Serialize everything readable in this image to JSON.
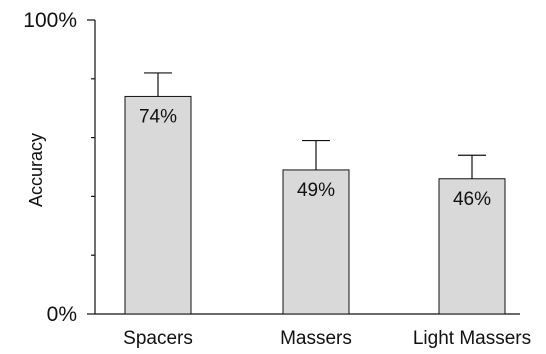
{
  "chart_data": {
    "type": "bar",
    "title": "",
    "xlabel": "",
    "ylabel": "Accuracy",
    "ylim": [
      0,
      100
    ],
    "y_tick_labels": [
      {
        "value": 0,
        "label": "0%"
      },
      {
        "value": 100,
        "label": "100%"
      }
    ],
    "y_minor_ticks": [
      20,
      40,
      60,
      80
    ],
    "categories": [
      "Spacers",
      "Massers",
      "Light Massers"
    ],
    "values": [
      74,
      49,
      46
    ],
    "error_upper": [
      82,
      59,
      54
    ],
    "data_labels": [
      "74%",
      "49%",
      "46%"
    ],
    "grid": false,
    "colors": {
      "bar_fill": "#d9d9d9",
      "bar_stroke": "#111111"
    }
  }
}
